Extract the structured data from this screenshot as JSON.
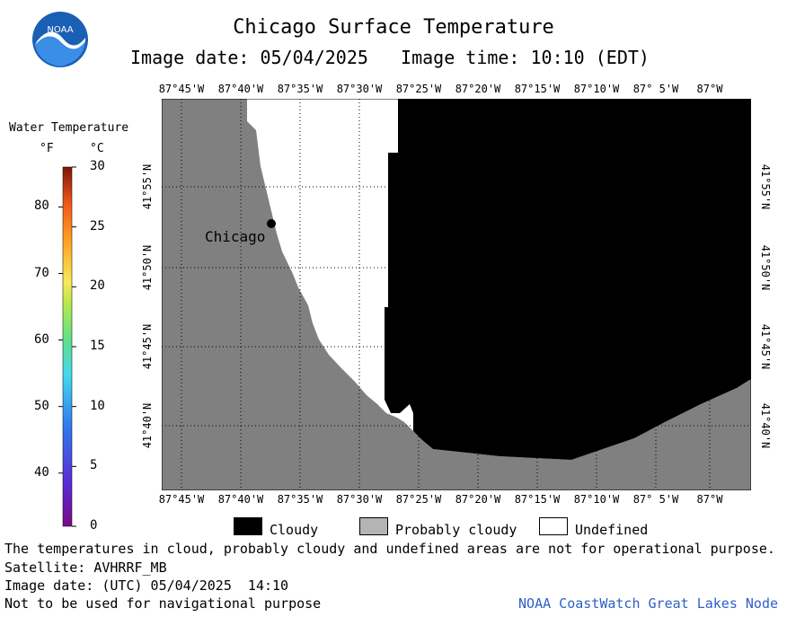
{
  "header": {
    "title": "Chicago Surface Temperature",
    "subtitle": "Image date: 05/04/2025   Image time: 10:10 (EDT)",
    "logo_text": "NOAA"
  },
  "colorbar": {
    "title": "Water Temperature",
    "unit_f": "°F",
    "unit_c": "°C",
    "f_ticks": [
      "80",
      "70",
      "60",
      "50",
      "40"
    ],
    "c_ticks": [
      "30",
      "25",
      "20",
      "15",
      "10",
      "5",
      "0"
    ]
  },
  "map": {
    "lon_labels": [
      "87°45'W",
      "87°40'W",
      "87°35'W",
      "87°30'W",
      "87°25'W",
      "87°20'W",
      "87°15'W",
      "87°10'W",
      "87° 5'W",
      "87°W"
    ],
    "lat_labels": [
      "41°55'N",
      "41°50'N",
      "41°45'N",
      "41°40'N"
    ],
    "city_label": "Chicago",
    "colors": {
      "land": "#808080",
      "cloudy": "#000000",
      "probably_cloudy": "#b4b4b4",
      "undefined": "#ffffff"
    }
  },
  "legend": {
    "cloudy": "Cloudy",
    "probably_cloudy": "Probably cloudy",
    "undefined": "Undefined"
  },
  "notes": {
    "disclaimer": "The temperatures in cloud, probably cloudy and undefined areas are not for operational purpose.",
    "satellite": "Satellite: AVHRRF_MB",
    "utc_date": "Image date: (UTC) 05/04/2025  14:10",
    "navigation": "Not to be used for navigational purpose",
    "credit": "NOAA CoastWatch Great Lakes Node"
  }
}
